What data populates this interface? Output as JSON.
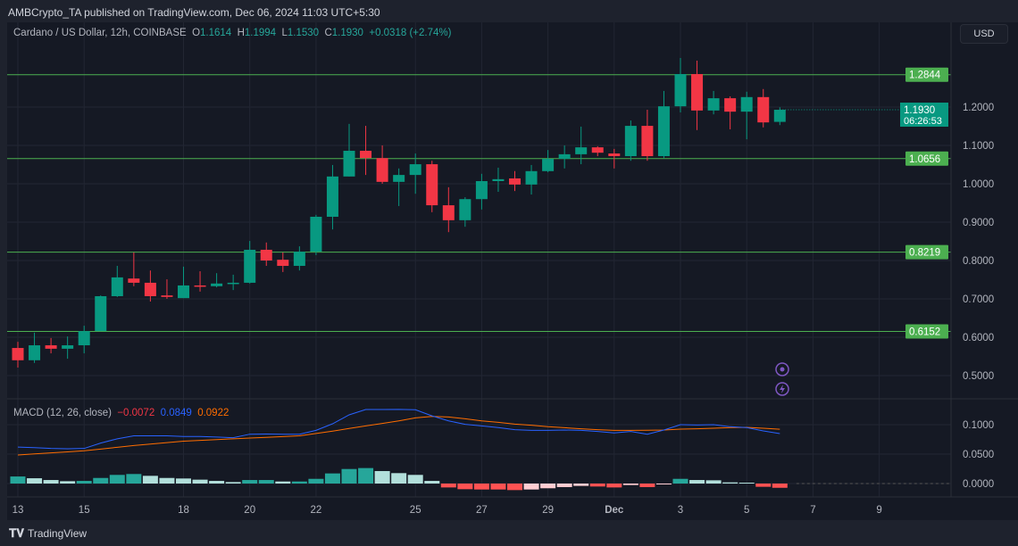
{
  "header": {
    "published": "AMBCrypto_TA published on TradingView.com, Dec 06, 2024 11:03 UTC+5:30"
  },
  "legend": {
    "symbol": "Cardano / US Dollar, 12h, COINBASE",
    "o_label": "O",
    "o": "1.1614",
    "h_label": "H",
    "h": "1.1994",
    "l_label": "L",
    "l": "1.1530",
    "c_label": "C",
    "c": "1.1930",
    "change": "+0.0318 (+2.74%)"
  },
  "currency_button": "USD",
  "macd_legend": {
    "name": "MACD (12, 26, close)",
    "hist": "−0.0072",
    "macd": "0.0849",
    "signal": "0.0922"
  },
  "footer": {
    "brand": "TradingView"
  },
  "colors": {
    "up": "#089981",
    "down": "#f23645",
    "level": "#4caf50",
    "macd": "#2962ff",
    "signal": "#ff6d00",
    "hist_up_strong": "#26a69a",
    "hist_up_weak": "#b2dfdb",
    "hist_down_strong": "#ff5252",
    "hist_down_weak": "#ffcdd2",
    "icon": "#7e57c2"
  },
  "icons": [
    "alert-icon",
    "lightning-icon"
  ],
  "chart_data": {
    "type": "candlestick",
    "interval": "12h",
    "y_ticks": [
      "0.5000",
      "0.6000",
      "0.7000",
      "0.8000",
      "0.9000",
      "1.0000",
      "1.1000",
      "1.2000"
    ],
    "x_ticks": [
      {
        "label": "13",
        "date": "2024-11-13"
      },
      {
        "label": "15",
        "date": "2024-11-15"
      },
      {
        "label": "18",
        "date": "2024-11-18"
      },
      {
        "label": "20",
        "date": "2024-11-20"
      },
      {
        "label": "22",
        "date": "2024-11-22"
      },
      {
        "label": "25",
        "date": "2024-11-25"
      },
      {
        "label": "27",
        "date": "2024-11-27"
      },
      {
        "label": "29",
        "date": "2024-11-29"
      },
      {
        "label": "Dec",
        "date": "2024-12-01"
      },
      {
        "label": "3",
        "date": "2024-12-03"
      },
      {
        "label": "5",
        "date": "2024-12-05"
      },
      {
        "label": "7",
        "date": "2024-12-07"
      },
      {
        "label": "9",
        "date": "2024-12-09"
      }
    ],
    "levels": [
      "1.2844",
      "1.0656",
      "0.8219",
      "0.6152"
    ],
    "last_price": {
      "value": "1.1930",
      "countdown": "06:26:53"
    },
    "candles_ohlc": [
      [
        0.572,
        0.588,
        0.521,
        0.54
      ],
      [
        0.54,
        0.612,
        0.533,
        0.579
      ],
      [
        0.579,
        0.598,
        0.558,
        0.57
      ],
      [
        0.57,
        0.602,
        0.544,
        0.579
      ],
      [
        0.579,
        0.63,
        0.558,
        0.616
      ],
      [
        0.616,
        0.709,
        0.616,
        0.707
      ],
      [
        0.707,
        0.786,
        0.705,
        0.756
      ],
      [
        0.753,
        0.821,
        0.733,
        0.742
      ],
      [
        0.742,
        0.774,
        0.693,
        0.707
      ],
      [
        0.709,
        0.751,
        0.7,
        0.705
      ],
      [
        0.702,
        0.784,
        0.702,
        0.735
      ],
      [
        0.735,
        0.772,
        0.719,
        0.733
      ],
      [
        0.733,
        0.767,
        0.73,
        0.74
      ],
      [
        0.74,
        0.763,
        0.723,
        0.742
      ],
      [
        0.742,
        0.851,
        0.74,
        0.828
      ],
      [
        0.828,
        0.847,
        0.786,
        0.8
      ],
      [
        0.802,
        0.821,
        0.77,
        0.786
      ],
      [
        0.786,
        0.837,
        0.774,
        0.823
      ],
      [
        0.823,
        0.919,
        0.814,
        0.914
      ],
      [
        0.914,
        1.049,
        0.881,
        1.019
      ],
      [
        1.019,
        1.156,
        1.019,
        1.086
      ],
      [
        1.086,
        1.151,
        1.023,
        1.067
      ],
      [
        1.067,
        1.1,
        1.0,
        1.005
      ],
      [
        1.005,
        1.04,
        0.942,
        1.023
      ],
      [
        1.023,
        1.079,
        0.974,
        1.051
      ],
      [
        1.051,
        1.06,
        0.926,
        0.944
      ],
      [
        0.944,
        0.991,
        0.874,
        0.905
      ],
      [
        0.905,
        0.965,
        0.888,
        0.96
      ],
      [
        0.96,
        1.026,
        0.933,
        1.007
      ],
      [
        1.007,
        1.042,
        0.979,
        1.012
      ],
      [
        1.014,
        1.033,
        0.981,
        0.998
      ],
      [
        0.998,
        1.049,
        0.972,
        1.033
      ],
      [
        1.033,
        1.088,
        1.03,
        1.065
      ],
      [
        1.065,
        1.1,
        1.04,
        1.077
      ],
      [
        1.077,
        1.149,
        1.051,
        1.095
      ],
      [
        1.095,
        1.098,
        1.072,
        1.081
      ],
      [
        1.079,
        1.091,
        1.04,
        1.072
      ],
      [
        1.072,
        1.165,
        1.06,
        1.151
      ],
      [
        1.151,
        1.193,
        1.06,
        1.072
      ],
      [
        1.072,
        1.242,
        1.067,
        1.202
      ],
      [
        1.202,
        1.328,
        1.186,
        1.286
      ],
      [
        1.286,
        1.321,
        1.14,
        1.191
      ],
      [
        1.191,
        1.242,
        1.181,
        1.223
      ],
      [
        1.223,
        1.228,
        1.142,
        1.188
      ],
      [
        1.188,
        1.24,
        1.116,
        1.226
      ],
      [
        1.226,
        1.247,
        1.147,
        1.16
      ],
      [
        1.1614,
        1.1994,
        1.153,
        1.193
      ]
    ],
    "macd": {
      "y_ticks": [
        "0.0000",
        "0.0500",
        "0.1000"
      ],
      "macd": [
        0.062,
        0.061,
        0.0596,
        0.059,
        0.0596,
        0.0687,
        0.076,
        0.081,
        0.081,
        0.081,
        0.08,
        0.08,
        0.079,
        0.0778,
        0.0838,
        0.084,
        0.0838,
        0.0838,
        0.0904,
        0.1015,
        0.1167,
        0.1258,
        0.1258,
        0.126,
        0.1253,
        0.115,
        0.1065,
        0.1005,
        0.098,
        0.095,
        0.0914,
        0.0904,
        0.0904,
        0.0909,
        0.0904,
        0.0884,
        0.0859,
        0.0884,
        0.0838,
        0.0909,
        0.1,
        0.0995,
        0.1,
        0.0965,
        0.095,
        0.0894,
        0.0849
      ],
      "signal": [
        0.0485,
        0.0503,
        0.052,
        0.0538,
        0.0556,
        0.0586,
        0.0616,
        0.0646,
        0.067,
        0.0695,
        0.072,
        0.0733,
        0.0747,
        0.076,
        0.0773,
        0.0785,
        0.0798,
        0.081,
        0.085,
        0.089,
        0.0935,
        0.098,
        0.102,
        0.1065,
        0.1116,
        0.114,
        0.113,
        0.11,
        0.1065,
        0.104,
        0.101,
        0.099,
        0.0965,
        0.0948,
        0.093,
        0.0915,
        0.0904,
        0.0904,
        0.0905,
        0.091,
        0.0924,
        0.093,
        0.094,
        0.095,
        0.0955,
        0.094,
        0.0922
      ],
      "histogram": [
        0.012,
        0.009,
        0.006,
        0.004,
        0.0045,
        0.0095,
        0.0147,
        0.0162,
        0.0131,
        0.0095,
        0.0086,
        0.0066,
        0.0045,
        0.0025,
        0.006,
        0.006,
        0.0035,
        0.0035,
        0.008,
        0.0172,
        0.0247,
        0.0263,
        0.0212,
        0.0177,
        0.0147,
        0.0045,
        -0.0066,
        -0.0096,
        -0.0101,
        -0.0101,
        -0.0111,
        -0.0101,
        -0.008,
        -0.006,
        -0.004,
        -0.005,
        -0.0066,
        -0.0025,
        -0.006,
        -0.001,
        0.008,
        0.006,
        0.0055,
        0.002,
        0.0015,
        -0.0055,
        -0.0072
      ]
    }
  }
}
